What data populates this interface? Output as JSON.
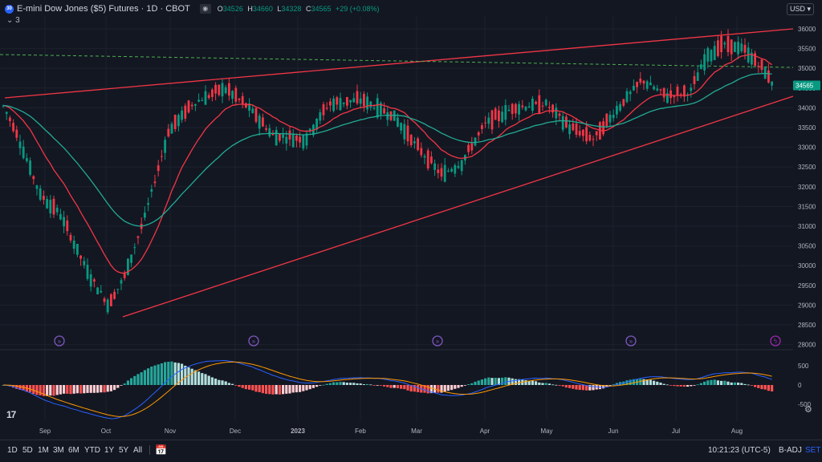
{
  "header": {
    "symbol_badge": "30",
    "title": "E-mini Dow Jones ($5) Futures · 1D · CBOT",
    "ohlc": [
      {
        "k": "O",
        "v": "34526"
      },
      {
        "k": "H",
        "v": "34660"
      },
      {
        "k": "L",
        "v": "34328"
      },
      {
        "k": "C",
        "v": "34565"
      },
      {
        "k": "",
        "v": "+29 (+0.08%)"
      }
    ],
    "collapse_label": "3",
    "currency": "USD"
  },
  "colors": {
    "background": "#131722",
    "up": "#089981",
    "down": "#f23645",
    "ema_fast": "#f23645",
    "ema_slow": "#22ab94",
    "trendline": "#f23645",
    "dashed": "#4caf50",
    "macd": "#2962ff",
    "signal": "#ff9800"
  },
  "price_axis": {
    "labels": [
      "36000",
      "35500",
      "35000",
      "34500",
      "34000",
      "33500",
      "33000",
      "32500",
      "32000",
      "31500",
      "31000",
      "30500",
      "30000",
      "29500",
      "29000",
      "28500",
      "28000"
    ],
    "last_price": "34565"
  },
  "macd_axis": {
    "labels": [
      "500",
      "0",
      "-500"
    ]
  },
  "time_axis": {
    "labels": [
      "Sep",
      "Oct",
      "Nov",
      "Dec",
      "2023",
      "Feb",
      "Mar",
      "Apr",
      "May",
      "Jun",
      "Jul",
      "Aug"
    ]
  },
  "events": [
    "event-marker",
    "event-marker",
    "event-marker",
    "event-marker",
    "event-marker-alert"
  ],
  "bottom_bar": {
    "timeframes": [
      "1D",
      "5D",
      "1M",
      "3M",
      "6M",
      "YTD",
      "1Y",
      "5Y",
      "All"
    ],
    "clock": "10:21:23 (UTC-5)",
    "adjust": "B-ADJ",
    "settings": "SET"
  }
}
